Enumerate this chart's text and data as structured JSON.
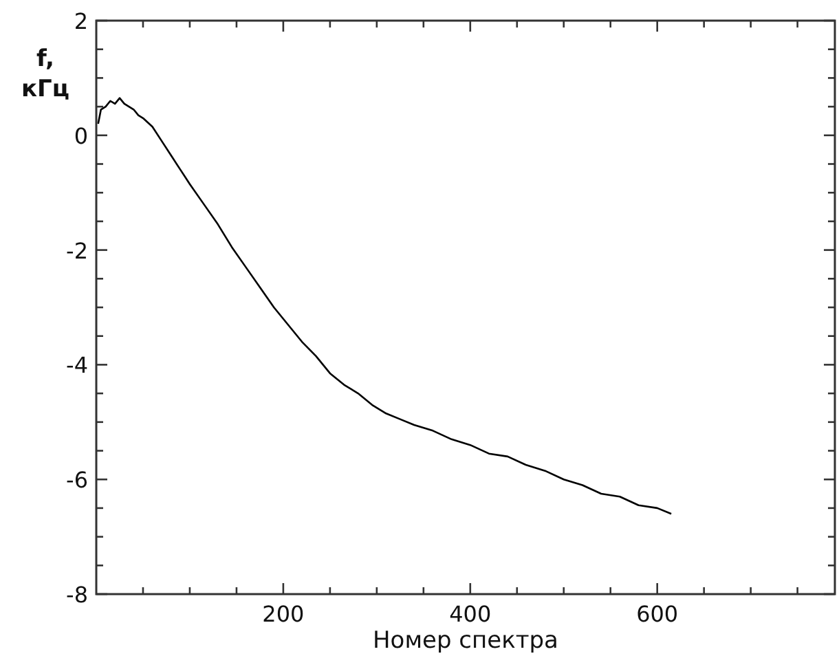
{
  "chart_data": {
    "type": "line",
    "ylabel": "f,\nкГц",
    "xlabel": "Номер спектра",
    "xlim": [
      0,
      790
    ],
    "ylim": [
      -8,
      2
    ],
    "xticks": [
      {
        "value": 50,
        "label": null
      },
      {
        "value": 100,
        "label": null
      },
      {
        "value": 150,
        "label": null
      },
      200,
      {
        "value": 250,
        "label": null
      },
      {
        "value": 300,
        "label": null
      },
      {
        "value": 350,
        "label": null
      },
      400,
      {
        "value": 450,
        "label": null
      },
      {
        "value": 500,
        "label": null
      },
      {
        "value": 550,
        "label": null
      },
      600,
      {
        "value": 650,
        "label": null
      },
      {
        "value": 700,
        "label": null
      },
      {
        "value": 750,
        "label": null
      }
    ],
    "yticks": [
      -8,
      {
        "value": -7.5,
        "label": null
      },
      {
        "value": -7,
        "label": null
      },
      {
        "value": -6.5,
        "label": null
      },
      -6,
      {
        "value": -5.5,
        "label": null
      },
      {
        "value": -5,
        "label": null
      },
      {
        "value": -4.5,
        "label": null
      },
      -4,
      {
        "value": -3.5,
        "label": null
      },
      {
        "value": -3,
        "label": null
      },
      {
        "value": -2.5,
        "label": null
      },
      -2,
      {
        "value": -1.5,
        "label": null
      },
      {
        "value": -1,
        "label": null
      },
      {
        "value": -0.5,
        "label": null
      },
      0,
      {
        "value": 0.5,
        "label": null
      },
      {
        "value": 1,
        "label": null
      },
      {
        "value": 1.5,
        "label": null
      },
      2
    ],
    "grid": false,
    "marker": "none",
    "line_style": "solid",
    "series": [
      {
        "color": "#000000",
        "x": [
          2,
          5,
          10,
          15,
          20,
          25,
          30,
          35,
          40,
          45,
          50,
          60,
          70,
          80,
          90,
          100,
          115,
          130,
          145,
          160,
          175,
          190,
          205,
          220,
          235,
          250,
          265,
          280,
          295,
          310,
          325,
          340,
          360,
          380,
          400,
          420,
          440,
          460,
          480,
          500,
          520,
          540,
          560,
          580,
          600,
          615
        ],
        "values": [
          0.2,
          0.45,
          0.5,
          0.6,
          0.55,
          0.65,
          0.55,
          0.5,
          0.45,
          0.35,
          0.3,
          0.15,
          -0.1,
          -0.35,
          -0.6,
          -0.85,
          -1.2,
          -1.55,
          -1.95,
          -2.3,
          -2.65,
          -3.0,
          -3.3,
          -3.6,
          -3.85,
          -4.15,
          -4.35,
          -4.5,
          -4.7,
          -4.85,
          -4.95,
          -5.05,
          -5.15,
          -5.3,
          -5.4,
          -5.55,
          -5.6,
          -5.75,
          -5.85,
          -6.0,
          -6.1,
          -6.25,
          -6.3,
          -6.45,
          -6.5,
          -6.6
        ]
      }
    ]
  }
}
